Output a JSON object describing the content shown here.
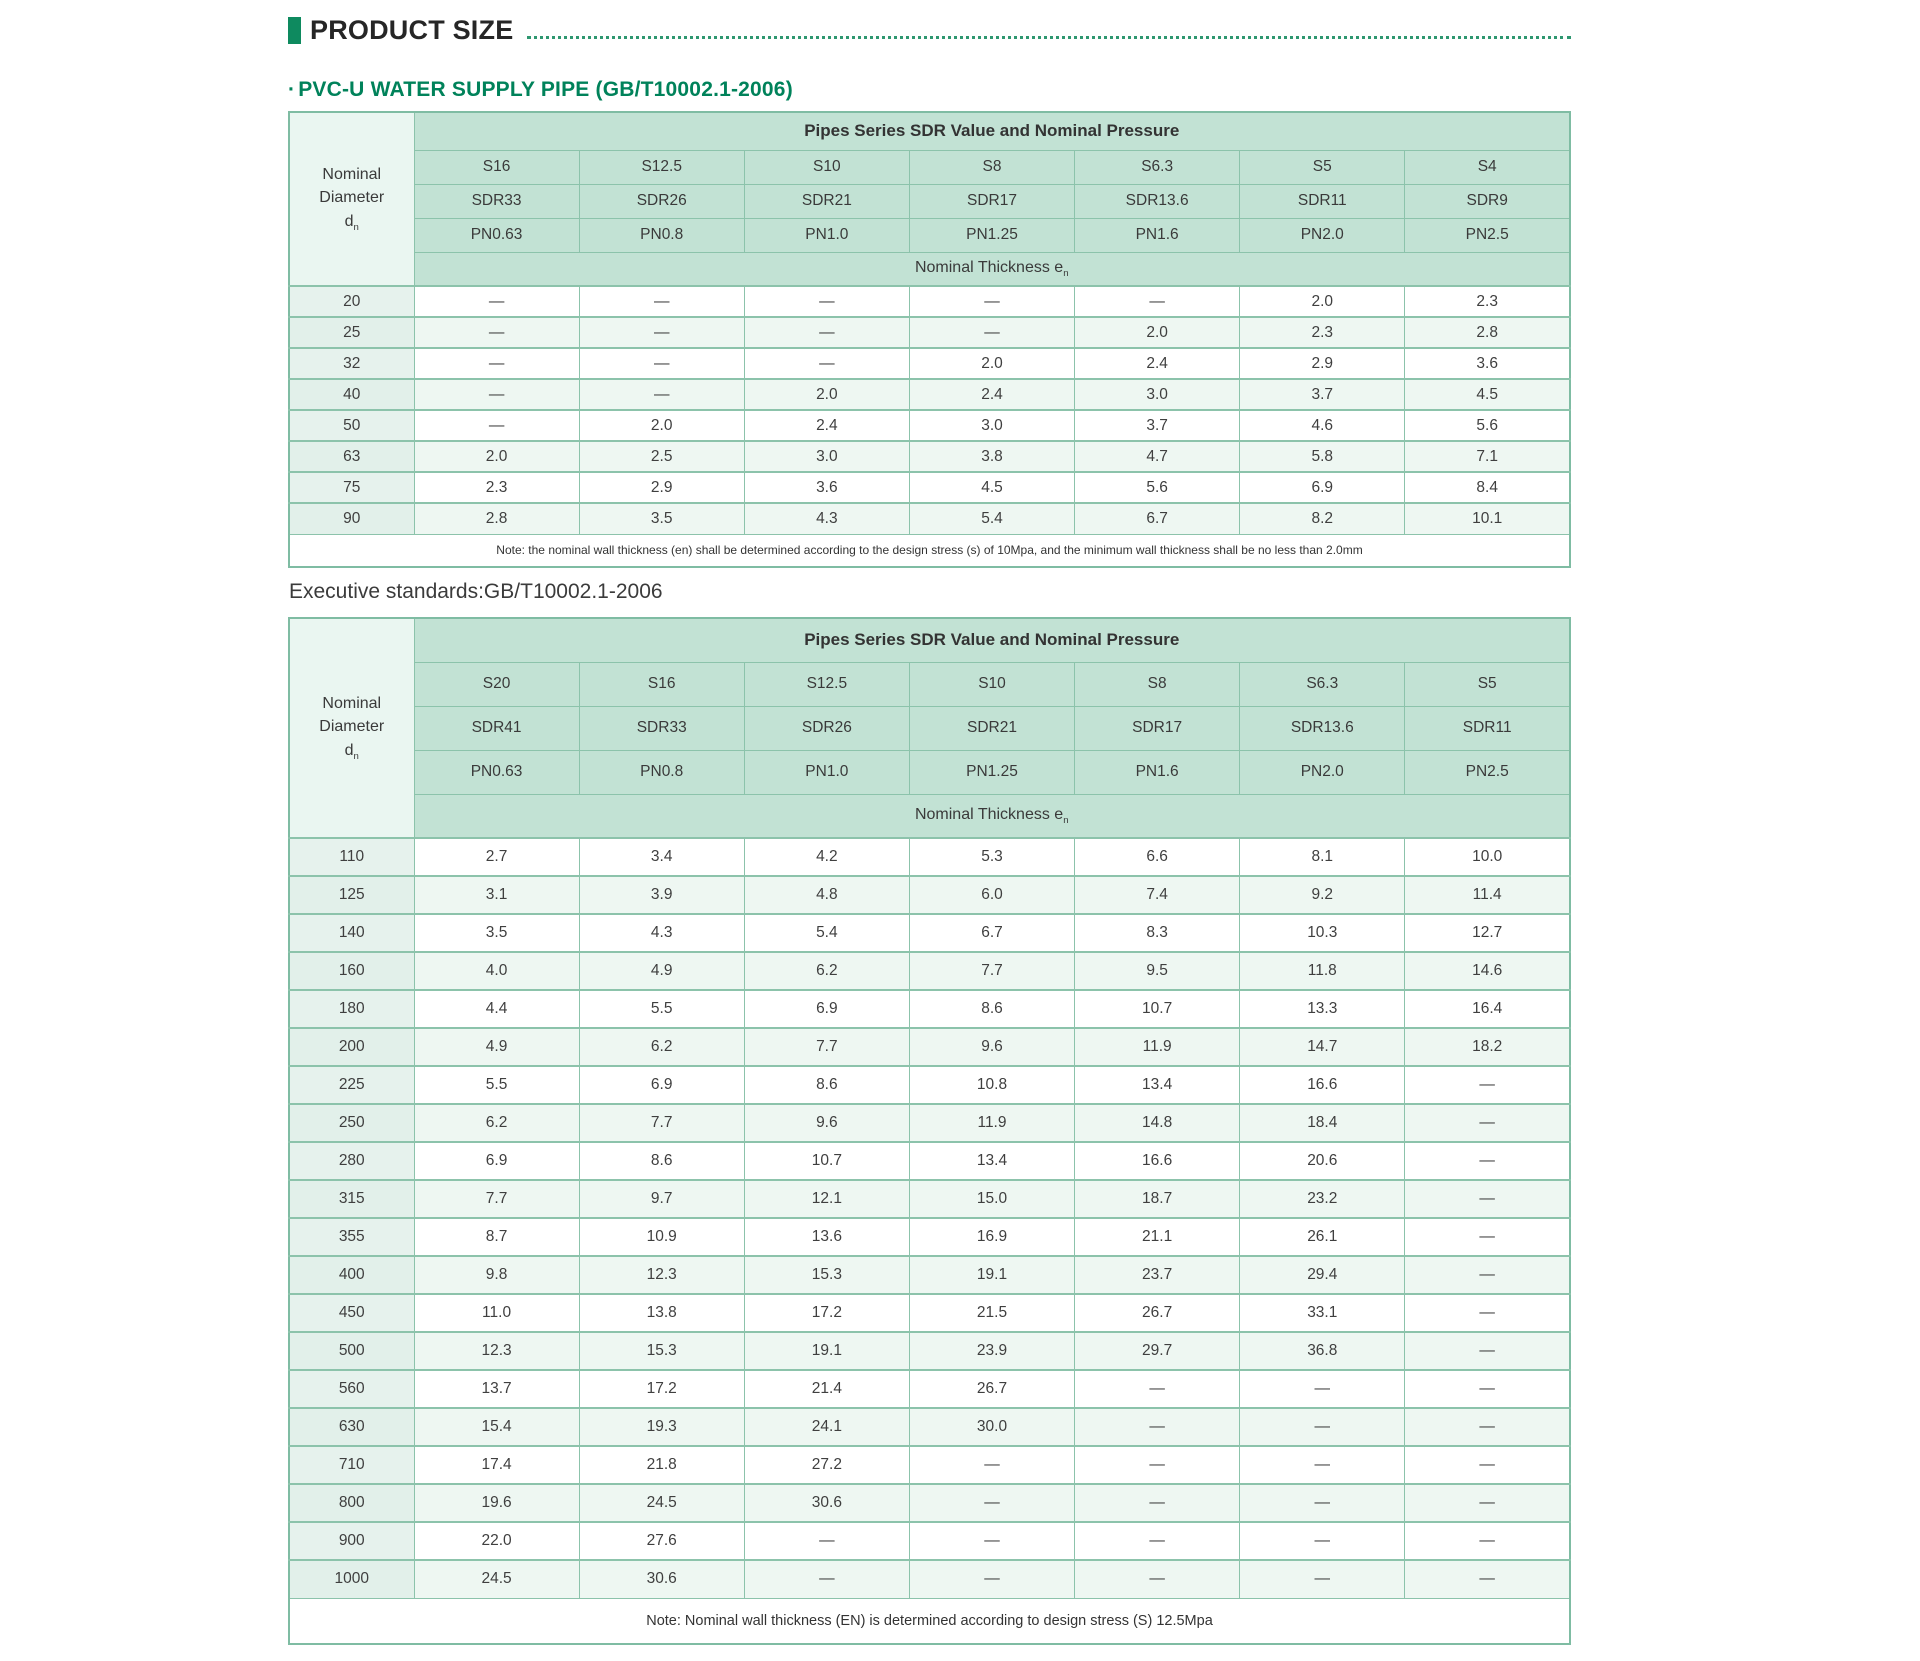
{
  "page": {
    "title": "PRODUCT SIZE",
    "subtitle_bullet": "·",
    "subtitle": "PVC-U WATER SUPPLY PIPE (GB/T10002.1-2006)",
    "executive_standards": "Executive standards:GB/T10002.1-2006"
  },
  "colors": {
    "accent_bar_green": "#0e8a5f",
    "subtitle_green": "#00825a",
    "dotted_line_green": "#2e9770",
    "header_cell_bg": "#c2e2d4",
    "left_header_bg": "#eaf6f1",
    "diameter_cell_bg": "#e6f2ed",
    "alt_row_bg": "#eef7f2",
    "table_border": "#7fbca3",
    "text": "#3f3f3f"
  },
  "table1": {
    "header_title": "Pipes Series SDR Value and Nominal Pressure",
    "diameter_label": "Nominal Diameter",
    "diameter_symbol": "d",
    "diameter_sub": "n",
    "thickness_label": "Nominal Thickness e",
    "thickness_sub": "n",
    "s_values": [
      "S16",
      "S12.5",
      "S10",
      "S8",
      "S6.3",
      "S5",
      "S4"
    ],
    "sdr_values": [
      "SDR33",
      "SDR26",
      "SDR21",
      "SDR17",
      "SDR13.6",
      "SDR11",
      "SDR9"
    ],
    "pn_values": [
      "PN0.63",
      "PN0.8",
      "PN1.0",
      "PN1.25",
      "PN1.6",
      "PN2.0",
      "PN2.5"
    ],
    "rows": [
      {
        "d": "20",
        "values": [
          "—",
          "—",
          "—",
          "—",
          "—",
          "2.0",
          "2.3"
        ]
      },
      {
        "d": "25",
        "values": [
          "—",
          "—",
          "—",
          "—",
          "2.0",
          "2.3",
          "2.8"
        ]
      },
      {
        "d": "32",
        "values": [
          "—",
          "—",
          "—",
          "2.0",
          "2.4",
          "2.9",
          "3.6"
        ]
      },
      {
        "d": "40",
        "values": [
          "—",
          "—",
          "2.0",
          "2.4",
          "3.0",
          "3.7",
          "4.5"
        ]
      },
      {
        "d": "50",
        "values": [
          "—",
          "2.0",
          "2.4",
          "3.0",
          "3.7",
          "4.6",
          "5.6"
        ]
      },
      {
        "d": "63",
        "values": [
          "2.0",
          "2.5",
          "3.0",
          "3.8",
          "4.7",
          "5.8",
          "7.1"
        ]
      },
      {
        "d": "75",
        "values": [
          "2.3",
          "2.9",
          "3.6",
          "4.5",
          "5.6",
          "6.9",
          "8.4"
        ]
      },
      {
        "d": "90",
        "values": [
          "2.8",
          "3.5",
          "4.3",
          "5.4",
          "6.7",
          "8.2",
          "10.1"
        ]
      }
    ],
    "note": "Note: the nominal wall thickness (en) shall be determined according to the design stress (s) of 10Mpa, and the minimum wall thickness shall be no less than 2.0mm"
  },
  "table2": {
    "header_title": "Pipes Series SDR Value and Nominal Pressure",
    "diameter_label": "Nominal Diameter",
    "diameter_symbol": "d",
    "diameter_sub": "n",
    "thickness_label": "Nominal Thickness e",
    "thickness_sub": "n",
    "s_values": [
      "S20",
      "S16",
      "S12.5",
      "S10",
      "S8",
      "S6.3",
      "S5"
    ],
    "sdr_values": [
      "SDR41",
      "SDR33",
      "SDR26",
      "SDR21",
      "SDR17",
      "SDR13.6",
      "SDR11"
    ],
    "pn_values": [
      "PN0.63",
      "PN0.8",
      "PN1.0",
      "PN1.25",
      "PN1.6",
      "PN2.0",
      "PN2.5"
    ],
    "rows": [
      {
        "d": "110",
        "values": [
          "2.7",
          "3.4",
          "4.2",
          "5.3",
          "6.6",
          "8.1",
          "10.0"
        ]
      },
      {
        "d": "125",
        "values": [
          "3.1",
          "3.9",
          "4.8",
          "6.0",
          "7.4",
          "9.2",
          "11.4"
        ]
      },
      {
        "d": "140",
        "values": [
          "3.5",
          "4.3",
          "5.4",
          "6.7",
          "8.3",
          "10.3",
          "12.7"
        ]
      },
      {
        "d": "160",
        "values": [
          "4.0",
          "4.9",
          "6.2",
          "7.7",
          "9.5",
          "11.8",
          "14.6"
        ]
      },
      {
        "d": "180",
        "values": [
          "4.4",
          "5.5",
          "6.9",
          "8.6",
          "10.7",
          "13.3",
          "16.4"
        ]
      },
      {
        "d": "200",
        "values": [
          "4.9",
          "6.2",
          "7.7",
          "9.6",
          "11.9",
          "14.7",
          "18.2"
        ]
      },
      {
        "d": "225",
        "values": [
          "5.5",
          "6.9",
          "8.6",
          "10.8",
          "13.4",
          "16.6",
          "—"
        ]
      },
      {
        "d": "250",
        "values": [
          "6.2",
          "7.7",
          "9.6",
          "11.9",
          "14.8",
          "18.4",
          "—"
        ]
      },
      {
        "d": "280",
        "values": [
          "6.9",
          "8.6",
          "10.7",
          "13.4",
          "16.6",
          "20.6",
          "—"
        ]
      },
      {
        "d": "315",
        "values": [
          "7.7",
          "9.7",
          "12.1",
          "15.0",
          "18.7",
          "23.2",
          "—"
        ]
      },
      {
        "d": "355",
        "values": [
          "8.7",
          "10.9",
          "13.6",
          "16.9",
          "21.1",
          "26.1",
          "—"
        ]
      },
      {
        "d": "400",
        "values": [
          "9.8",
          "12.3",
          "15.3",
          "19.1",
          "23.7",
          "29.4",
          "—"
        ]
      },
      {
        "d": "450",
        "values": [
          "11.0",
          "13.8",
          "17.2",
          "21.5",
          "26.7",
          "33.1",
          "—"
        ]
      },
      {
        "d": "500",
        "values": [
          "12.3",
          "15.3",
          "19.1",
          "23.9",
          "29.7",
          "36.8",
          "—"
        ]
      },
      {
        "d": "560",
        "values": [
          "13.7",
          "17.2",
          "21.4",
          "26.7",
          "—",
          "—",
          "—"
        ]
      },
      {
        "d": "630",
        "values": [
          "15.4",
          "19.3",
          "24.1",
          "30.0",
          "—",
          "—",
          "—"
        ]
      },
      {
        "d": "710",
        "values": [
          "17.4",
          "21.8",
          "27.2",
          "—",
          "—",
          "—",
          "—"
        ]
      },
      {
        "d": "800",
        "values": [
          "19.6",
          "24.5",
          "30.6",
          "—",
          "—",
          "—",
          "—"
        ]
      },
      {
        "d": "900",
        "values": [
          "22.0",
          "27.6",
          "—",
          "—",
          "—",
          "—",
          "—"
        ]
      },
      {
        "d": "1000",
        "values": [
          "24.5",
          "30.6",
          "—",
          "—",
          "—",
          "—",
          "—"
        ]
      }
    ],
    "note": "Note: Nominal wall thickness (EN) is determined according to design stress (S) 12.5Mpa"
  }
}
